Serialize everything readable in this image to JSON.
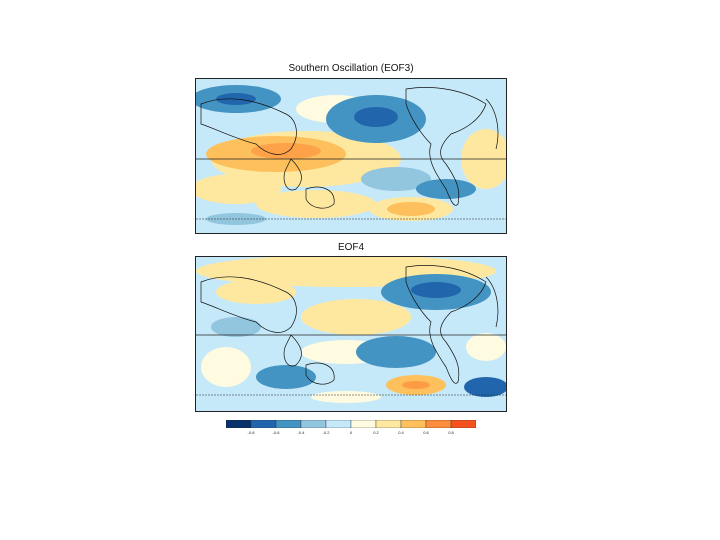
{
  "panels": [
    {
      "title": "Southern Oscillation (EOF3)"
    },
    {
      "title": "EOF4"
    }
  ],
  "colorbar": {
    "colors": [
      "#08306b",
      "#2166ac",
      "#4393c3",
      "#92c5de",
      "#c6e9f9",
      "#fffbe0",
      "#fee8a0",
      "#fdc05c",
      "#fd8d3c",
      "#f4511e"
    ],
    "tick_labels": [
      "-0.8",
      "-0.6",
      "-0.4",
      "-0.2",
      "0",
      "0.2",
      "0.4",
      "0.6",
      "0.8"
    ]
  }
}
